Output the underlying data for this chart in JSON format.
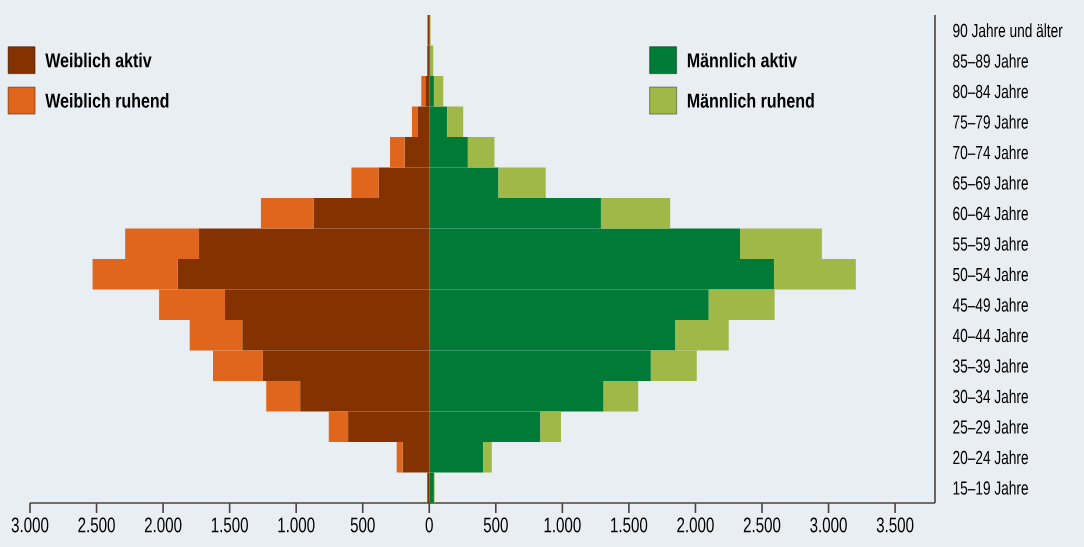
{
  "chart_data": {
    "type": "bar",
    "orientation": "horizontal",
    "stacked": true,
    "legend": "top",
    "categories": [
      "90 Jahre und älter",
      "85–89 Jahre",
      "80–84 Jahre",
      "75–79 Jahre",
      "70–74 Jahre",
      "65–69 Jahre",
      "60–64 Jahre",
      "55–59 Jahre",
      "50–54 Jahre",
      "45–49 Jahre",
      "40–44 Jahre",
      "35–39 Jahre",
      "30–34 Jahre",
      "25–29 Jahre",
      "20–24 Jahre",
      "15–19 Jahre"
    ],
    "series": [
      {
        "name": "Weiblich aktiv",
        "color": "#833200",
        "values": [
          -10,
          -15,
          -30,
          -85,
          -185,
          -380,
          -870,
          -1730,
          -1890,
          -1535,
          -1405,
          -1250,
          -970,
          -610,
          -200,
          -15
        ]
      },
      {
        "name": "Weiblich ruhend",
        "color": "#e0661e",
        "values": [
          -5,
          0,
          -30,
          -45,
          -110,
          -205,
          -395,
          -555,
          -640,
          -495,
          -395,
          -375,
          -255,
          -145,
          -45,
          0
        ]
      },
      {
        "name": "Männlich aktiv",
        "color": "#007a37",
        "values": [
          5,
          10,
          35,
          135,
          290,
          520,
          1290,
          2335,
          2590,
          2100,
          1850,
          1665,
          1310,
          835,
          405,
          35
        ]
      },
      {
        "name": "Männlich ruhend",
        "color": "#9fb848",
        "values": [
          5,
          20,
          70,
          120,
          200,
          355,
          520,
          615,
          615,
          495,
          400,
          345,
          260,
          155,
          65,
          5
        ]
      }
    ],
    "xlim": [
      -3000,
      3800
    ],
    "xticks": [
      {
        "value": -3000,
        "label": "3.000"
      },
      {
        "value": -2500,
        "label": "2.500"
      },
      {
        "value": -2000,
        "label": "2.000"
      },
      {
        "value": -1500,
        "label": "1.500"
      },
      {
        "value": -1000,
        "label": "1.000"
      },
      {
        "value": -500,
        "label": "500"
      },
      0,
      500,
      {
        "value": 1000,
        "label": "1.000"
      },
      {
        "value": 1500,
        "label": "1.500"
      },
      {
        "value": 2000,
        "label": "2.000"
      },
      {
        "value": 2500,
        "label": "2.500"
      },
      {
        "value": 3000,
        "label": "3.000"
      },
      {
        "value": 3500,
        "label": "3.500"
      }
    ]
  }
}
